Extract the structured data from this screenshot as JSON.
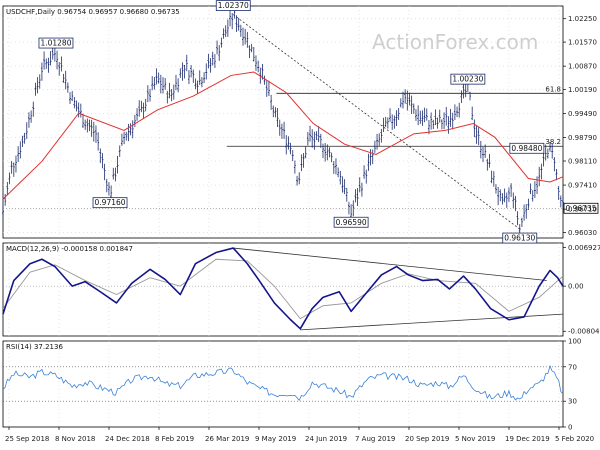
{
  "chart_data": [
    {
      "type": "candlestick",
      "symbol_line": "USDCHF,Daily  0.96754 0.96957 0.96680 0.96735",
      "watermark": "ActionForex.com",
      "x_tick_labels": [
        "25 Sep 2018",
        "8 Nov 2018",
        "24 Dec 2018",
        "8 Feb 2019",
        "26 Mar 2019",
        "9 May 2019",
        "24 Jun 2019",
        "7 Aug 2019",
        "20 Sep 2019",
        "5 Nov 2019",
        "19 Dec 2019",
        "5 Feb 2020"
      ],
      "y_ticks": [
        "1.02250",
        "1.01570",
        "1.00870",
        "1.00190",
        "0.99490",
        "0.98790",
        "0.98110",
        "0.97410",
        "0.96710",
        "0.96030"
      ],
      "ylim": [
        0.9587,
        1.0262
      ],
      "price_path": [
        {
          "x": "2018-09-25",
          "y": 0.9665
        },
        {
          "x": "2018-10-03",
          "y": 0.979
        },
        {
          "x": "2018-10-15",
          "y": 0.988
        },
        {
          "x": "2018-10-31",
          "y": 1.008
        },
        {
          "x": "2018-11-13",
          "y": 1.0128
        },
        {
          "x": "2018-11-28",
          "y": 0.999
        },
        {
          "x": "2018-12-10",
          "y": 0.9925
        },
        {
          "x": "2018-12-20",
          "y": 0.989
        },
        {
          "x": "2019-01-02",
          "y": 0.9716
        },
        {
          "x": "2019-01-15",
          "y": 0.988
        },
        {
          "x": "2019-01-30",
          "y": 0.995
        },
        {
          "x": "2019-02-15",
          "y": 1.005
        },
        {
          "x": "2019-02-27",
          "y": 1.0
        },
        {
          "x": "2019-03-12",
          "y": 1.009
        },
        {
          "x": "2019-03-25",
          "y": 1.004
        },
        {
          "x": "2019-04-10",
          "y": 1.012
        },
        {
          "x": "2019-04-26",
          "y": 1.0237
        },
        {
          "x": "2019-05-08",
          "y": 1.017
        },
        {
          "x": "2019-05-22",
          "y": 1.007
        },
        {
          "x": "2019-06-05",
          "y": 0.993
        },
        {
          "x": "2019-06-20",
          "y": 0.984
        },
        {
          "x": "2019-06-25",
          "y": 0.975
        },
        {
          "x": "2019-07-05",
          "y": 0.988
        },
        {
          "x": "2019-07-18",
          "y": 0.986
        },
        {
          "x": "2019-08-02",
          "y": 0.978
        },
        {
          "x": "2019-08-13",
          "y": 0.9659
        },
        {
          "x": "2019-08-28",
          "y": 0.979
        },
        {
          "x": "2019-09-12",
          "y": 0.99
        },
        {
          "x": "2019-09-25",
          "y": 0.995
        },
        {
          "x": "2019-10-01",
          "y": 1.0
        },
        {
          "x": "2019-10-15",
          "y": 0.994
        },
        {
          "x": "2019-10-28",
          "y": 0.992
        },
        {
          "x": "2019-11-12",
          "y": 0.993
        },
        {
          "x": "2019-11-29",
          "y": 1.0023
        },
        {
          "x": "2019-12-06",
          "y": 0.99
        },
        {
          "x": "2019-12-18",
          "y": 0.98
        },
        {
          "x": "2019-12-31",
          "y": 0.968
        },
        {
          "x": "2020-01-09",
          "y": 0.973
        },
        {
          "x": "2020-01-16",
          "y": 0.9613
        },
        {
          "x": "2020-01-24",
          "y": 0.97
        },
        {
          "x": "2020-02-03",
          "y": 0.976
        },
        {
          "x": "2020-02-11",
          "y": 0.9848
        },
        {
          "x": "2020-02-17",
          "y": 0.982
        },
        {
          "x": "2020-02-21",
          "y": 0.972
        },
        {
          "x": "2020-02-25",
          "y": 0.9674
        }
      ],
      "sma": [
        {
          "x": "2018-09-25",
          "y": 0.97
        },
        {
          "x": "2018-10-31",
          "y": 0.981
        },
        {
          "x": "2018-12-04",
          "y": 0.995
        },
        {
          "x": "2019-01-15",
          "y": 0.99
        },
        {
          "x": "2019-02-15",
          "y": 0.996
        },
        {
          "x": "2019-03-20",
          "y": 1.0
        },
        {
          "x": "2019-04-24",
          "y": 1.006
        },
        {
          "x": "2019-05-15",
          "y": 1.007
        },
        {
          "x": "2019-06-14",
          "y": 1.001
        },
        {
          "x": "2019-07-09",
          "y": 0.992
        },
        {
          "x": "2019-08-07",
          "y": 0.986
        },
        {
          "x": "2019-09-05",
          "y": 0.983
        },
        {
          "x": "2019-10-10",
          "y": 0.989
        },
        {
          "x": "2019-11-08",
          "y": 0.99
        },
        {
          "x": "2019-12-04",
          "y": 0.992
        },
        {
          "x": "2019-12-24",
          "y": 0.988
        },
        {
          "x": "2020-01-24",
          "y": 0.976
        },
        {
          "x": "2020-02-13",
          "y": 0.975
        },
        {
          "x": "2020-02-25",
          "y": 0.9765
        }
      ],
      "swing_labels": [
        {
          "text": "1.01280",
          "x": "2018-11-13",
          "y": 1.0128,
          "pos": "above"
        },
        {
          "text": "0.97160",
          "x": "2019-01-02",
          "y": 0.9716,
          "pos": "below"
        },
        {
          "text": "1.02370",
          "x": "2019-04-26",
          "y": 1.0237,
          "pos": "above"
        },
        {
          "text": "0.96590",
          "x": "2019-08-13",
          "y": 0.9659,
          "pos": "below"
        },
        {
          "text": "1.00230",
          "x": "2019-11-29",
          "y": 1.0023,
          "pos": "above"
        },
        {
          "text": "0.98480",
          "x": "2020-02-11",
          "y": 0.9848,
          "pos": "left"
        },
        {
          "text": "0.96130",
          "x": "2020-01-16",
          "y": 0.9613,
          "pos": "below"
        }
      ],
      "trendline": [
        {
          "x": "2019-04-26",
          "y": 1.0237
        },
        {
          "x": "2020-01-16",
          "y": 0.9613
        }
      ],
      "fib_levels": [
        {
          "label": "61.8",
          "y": 1.0008,
          "from": "2019-06-05"
        },
        {
          "label": "38.2",
          "y": 0.9854,
          "from": "2019-04-20"
        }
      ],
      "last_price_label": "0.96735",
      "last_price": 0.96735
    },
    {
      "type": "line",
      "header": "MACD(12,26,9) -0.000158 0.001847",
      "y_ticks": [
        "0.006927",
        "0.00",
        "-0.008049"
      ],
      "ylim": [
        -0.0089,
        0.0077
      ],
      "series": [
        {
          "values": [
            {
              "x": "2018-09-25",
              "y": -0.005
            },
            {
              "x": "2018-10-05",
              "y": 0.001
            },
            {
              "x": "2018-10-20",
              "y": 0.004
            },
            {
              "x": "2018-10-31",
              "y": 0.0048
            },
            {
              "x": "2018-11-12",
              "y": 0.0035
            },
            {
              "x": "2018-11-28",
              "y": 0.0
            },
            {
              "x": "2018-12-10",
              "y": 0.0008
            },
            {
              "x": "2018-12-24",
              "y": -0.001
            },
            {
              "x": "2019-01-08",
              "y": -0.003
            },
            {
              "x": "2019-01-22",
              "y": 0.0005
            },
            {
              "x": "2019-02-08",
              "y": 0.003
            },
            {
              "x": "2019-02-22",
              "y": 0.0012
            },
            {
              "x": "2019-03-08",
              "y": -0.0015
            },
            {
              "x": "2019-03-22",
              "y": 0.004
            },
            {
              "x": "2019-04-10",
              "y": 0.006
            },
            {
              "x": "2019-04-26",
              "y": 0.0068
            },
            {
              "x": "2019-05-09",
              "y": 0.004
            },
            {
              "x": "2019-05-20",
              "y": 0.001
            },
            {
              "x": "2019-06-03",
              "y": -0.003
            },
            {
              "x": "2019-06-18",
              "y": -0.006
            },
            {
              "x": "2019-06-27",
              "y": -0.0076
            },
            {
              "x": "2019-07-08",
              "y": -0.004
            },
            {
              "x": "2019-07-18",
              "y": -0.002
            },
            {
              "x": "2019-08-02",
              "y": -0.001
            },
            {
              "x": "2019-08-13",
              "y": -0.0045
            },
            {
              "x": "2019-08-28",
              "y": -0.001
            },
            {
              "x": "2019-09-10",
              "y": 0.002
            },
            {
              "x": "2019-09-24",
              "y": 0.0035
            },
            {
              "x": "2019-10-05",
              "y": 0.002
            },
            {
              "x": "2019-10-18",
              "y": 0.001
            },
            {
              "x": "2019-11-01",
              "y": 0.0012
            },
            {
              "x": "2019-11-12",
              "y": -0.0005
            },
            {
              "x": "2019-11-25",
              "y": 0.0018
            },
            {
              "x": "2019-12-06",
              "y": -0.0005
            },
            {
              "x": "2019-12-20",
              "y": -0.004
            },
            {
              "x": "2020-01-06",
              "y": -0.006
            },
            {
              "x": "2020-01-20",
              "y": -0.0055
            },
            {
              "x": "2020-02-03",
              "y": 0.0
            },
            {
              "x": "2020-02-13",
              "y": 0.0028
            },
            {
              "x": "2020-02-20",
              "y": 0.0015
            },
            {
              "x": "2020-02-25",
              "y": 0.0
            }
          ]
        },
        {
          "values": [
            {
              "x": "2018-09-25",
              "y": -0.004
            },
            {
              "x": "2018-10-20",
              "y": 0.0025
            },
            {
              "x": "2018-11-12",
              "y": 0.0038
            },
            {
              "x": "2018-12-10",
              "y": 0.001
            },
            {
              "x": "2019-01-08",
              "y": -0.0015
            },
            {
              "x": "2019-02-08",
              "y": 0.0015
            },
            {
              "x": "2019-03-08",
              "y": 0.0
            },
            {
              "x": "2019-04-10",
              "y": 0.0048
            },
            {
              "x": "2019-05-09",
              "y": 0.0045
            },
            {
              "x": "2019-06-03",
              "y": 0.0
            },
            {
              "x": "2019-06-27",
              "y": -0.0058
            },
            {
              "x": "2019-07-18",
              "y": -0.0035
            },
            {
              "x": "2019-08-13",
              "y": -0.003
            },
            {
              "x": "2019-09-10",
              "y": 0.0005
            },
            {
              "x": "2019-10-05",
              "y": 0.0022
            },
            {
              "x": "2019-11-01",
              "y": 0.001
            },
            {
              "x": "2019-12-06",
              "y": 0.0005
            },
            {
              "x": "2020-01-06",
              "y": -0.0045
            },
            {
              "x": "2020-02-03",
              "y": -0.002
            },
            {
              "x": "2020-02-25",
              "y": 0.0018
            }
          ]
        }
      ],
      "trendlines": [
        [
          {
            "x": "2019-04-26",
            "y": 0.0068
          },
          {
            "x": "2020-02-10",
            "y": 0.001
          }
        ],
        [
          {
            "x": "2019-06-27",
            "y": -0.0078
          },
          {
            "x": "2020-02-25",
            "y": -0.005
          }
        ]
      ]
    },
    {
      "type": "line",
      "header": "RSI(14) 37.2136",
      "y_ticks": [
        "100",
        "70",
        "30",
        "0"
      ],
      "ylim": [
        0,
        100
      ],
      "levels": [
        70,
        30
      ],
      "values": [
        {
          "x": "2018-09-25",
          "y": 45
        },
        {
          "x": "2018-10-05",
          "y": 62
        },
        {
          "x": "2018-10-20",
          "y": 58
        },
        {
          "x": "2018-10-31",
          "y": 64
        },
        {
          "x": "2018-11-13",
          "y": 60
        },
        {
          "x": "2018-11-28",
          "y": 48
        },
        {
          "x": "2018-12-10",
          "y": 52
        },
        {
          "x": "2018-12-24",
          "y": 46
        },
        {
          "x": "2019-01-08",
          "y": 40
        },
        {
          "x": "2019-01-22",
          "y": 55
        },
        {
          "x": "2019-02-08",
          "y": 60
        },
        {
          "x": "2019-02-22",
          "y": 50
        },
        {
          "x": "2019-03-08",
          "y": 48
        },
        {
          "x": "2019-03-22",
          "y": 60
        },
        {
          "x": "2019-04-10",
          "y": 63
        },
        {
          "x": "2019-04-26",
          "y": 66
        },
        {
          "x": "2019-05-09",
          "y": 52
        },
        {
          "x": "2019-05-20",
          "y": 45
        },
        {
          "x": "2019-06-03",
          "y": 38
        },
        {
          "x": "2019-06-18",
          "y": 40
        },
        {
          "x": "2019-06-27",
          "y": 34
        },
        {
          "x": "2019-07-08",
          "y": 52
        },
        {
          "x": "2019-07-18",
          "y": 48
        },
        {
          "x": "2019-08-02",
          "y": 42
        },
        {
          "x": "2019-08-13",
          "y": 35
        },
        {
          "x": "2019-08-28",
          "y": 55
        },
        {
          "x": "2019-09-10",
          "y": 60
        },
        {
          "x": "2019-09-24",
          "y": 58
        },
        {
          "x": "2019-10-05",
          "y": 56
        },
        {
          "x": "2019-10-18",
          "y": 48
        },
        {
          "x": "2019-11-01",
          "y": 52
        },
        {
          "x": "2019-11-12",
          "y": 47
        },
        {
          "x": "2019-11-25",
          "y": 60
        },
        {
          "x": "2019-12-06",
          "y": 45
        },
        {
          "x": "2019-12-20",
          "y": 34
        },
        {
          "x": "2020-01-06",
          "y": 40
        },
        {
          "x": "2020-01-16",
          "y": 32
        },
        {
          "x": "2020-01-24",
          "y": 45
        },
        {
          "x": "2020-02-03",
          "y": 50
        },
        {
          "x": "2020-02-13",
          "y": 68
        },
        {
          "x": "2020-02-20",
          "y": 55
        },
        {
          "x": "2020-02-25",
          "y": 37
        }
      ]
    }
  ],
  "colors": {
    "bars": "#1a2a6c",
    "sma": "#e03030",
    "macd": "#14148c",
    "signal": "#999999",
    "rsi": "#3b82d6",
    "levels": "#555555",
    "grid": "#d8d8d8",
    "axis": "#000000"
  }
}
